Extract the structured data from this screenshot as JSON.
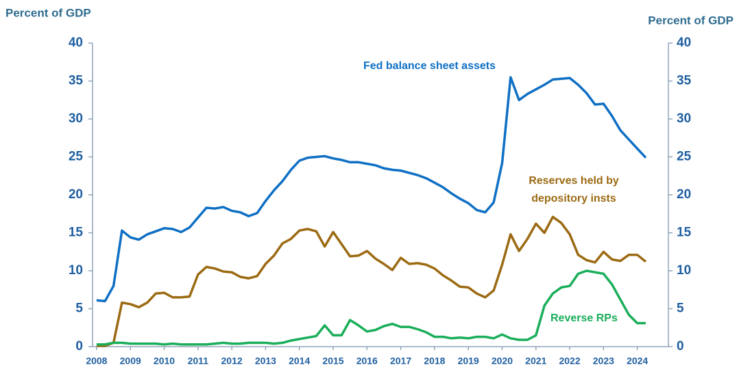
{
  "chart_data": {
    "type": "line",
    "y_label": "Percent of GDP",
    "y2_label": "Percent of GDP",
    "x": [
      2008,
      2008.25,
      2008.5,
      2008.75,
      2009,
      2009.25,
      2009.5,
      2009.75,
      2010,
      2010.25,
      2010.5,
      2010.75,
      2011,
      2011.25,
      2011.5,
      2011.75,
      2012,
      2012.25,
      2012.5,
      2012.75,
      2013,
      2013.25,
      2013.5,
      2013.75,
      2014,
      2014.25,
      2014.5,
      2014.75,
      2015,
      2015.25,
      2015.5,
      2015.75,
      2016,
      2016.25,
      2016.5,
      2016.75,
      2017,
      2017.25,
      2017.5,
      2017.75,
      2018,
      2018.25,
      2018.5,
      2018.75,
      2019,
      2019.25,
      2019.5,
      2019.75,
      2020,
      2020.25,
      2020.5,
      2020.75,
      2021,
      2021.25,
      2021.5,
      2021.75,
      2022,
      2022.25,
      2022.5,
      2022.75,
      2023,
      2023.25,
      2023.5,
      2023.75,
      2024,
      2024.25
    ],
    "series": [
      {
        "name": "Fed balance sheet assets",
        "color": "#0e6fc4",
        "values": [
          6.1,
          6.0,
          8.0,
          15.3,
          14.4,
          14.1,
          14.8,
          15.2,
          15.6,
          15.5,
          15.1,
          15.7,
          17.0,
          18.3,
          18.2,
          18.4,
          17.9,
          17.7,
          17.2,
          17.6,
          19.2,
          20.6,
          21.8,
          23.3,
          24.5,
          24.9,
          25.0,
          25.1,
          24.8,
          24.6,
          24.3,
          24.3,
          24.1,
          23.9,
          23.5,
          23.3,
          23.2,
          22.9,
          22.6,
          22.2,
          21.6,
          21.0,
          20.2,
          19.5,
          18.9,
          18.0,
          17.7,
          19.0,
          24.2,
          35.5,
          32.5,
          33.3,
          33.9,
          34.5,
          35.2,
          35.3,
          35.4,
          34.5,
          33.4,
          31.9,
          32.0,
          30.4,
          28.5,
          27.3,
          26.1,
          24.9
        ]
      },
      {
        "name": "Reserves held by depository insts",
        "color": "#9b6a12",
        "values": [
          0.1,
          0.1,
          0.5,
          5.8,
          5.6,
          5.2,
          5.8,
          7.0,
          7.1,
          6.5,
          6.5,
          6.6,
          9.5,
          10.5,
          10.3,
          9.9,
          9.8,
          9.2,
          9.0,
          9.3,
          10.9,
          12.0,
          13.6,
          14.2,
          15.3,
          15.5,
          15.2,
          13.2,
          15.1,
          13.5,
          11.9,
          12.0,
          12.6,
          11.6,
          10.9,
          10.1,
          11.7,
          10.9,
          11.0,
          10.8,
          10.3,
          9.4,
          8.7,
          7.9,
          7.8,
          7.0,
          6.5,
          7.4,
          10.8,
          14.8,
          12.6,
          14.2,
          16.2,
          15.0,
          17.1,
          16.3,
          14.8,
          12.1,
          11.4,
          11.1,
          12.5,
          11.5,
          11.3,
          12.1,
          12.1,
          11.2
        ]
      },
      {
        "name": "Reverse RPs",
        "color": "#1aae5a",
        "values": [
          0.3,
          0.3,
          0.5,
          0.5,
          0.4,
          0.4,
          0.4,
          0.4,
          0.3,
          0.4,
          0.3,
          0.3,
          0.3,
          0.3,
          0.4,
          0.5,
          0.4,
          0.4,
          0.5,
          0.5,
          0.5,
          0.4,
          0.5,
          0.8,
          1.0,
          1.2,
          1.4,
          2.8,
          1.5,
          1.5,
          3.5,
          2.8,
          2.0,
          2.2,
          2.7,
          3.0,
          2.6,
          2.6,
          2.3,
          1.9,
          1.3,
          1.3,
          1.1,
          1.2,
          1.1,
          1.3,
          1.3,
          1.1,
          1.6,
          1.1,
          0.9,
          0.9,
          1.5,
          5.4,
          7.0,
          7.8,
          8.0,
          9.6,
          10.0,
          9.8,
          9.6,
          8.2,
          6.2,
          4.2,
          3.1,
          3.1
        ]
      }
    ],
    "xlim": [
      2007.88,
      2024.92
    ],
    "xticks": [
      2008,
      2009,
      2010,
      2011,
      2012,
      2013,
      2014,
      2015,
      2016,
      2017,
      2018,
      2019,
      2020,
      2021,
      2022,
      2023,
      2024
    ],
    "ylim": [
      0,
      40
    ],
    "yticks": [
      0,
      5,
      10,
      15,
      20,
      25,
      30,
      35,
      40
    ],
    "y2lim": [
      0,
      40
    ],
    "y2ticks": [
      0,
      5,
      10,
      15,
      20,
      25,
      30,
      35,
      40
    ]
  }
}
